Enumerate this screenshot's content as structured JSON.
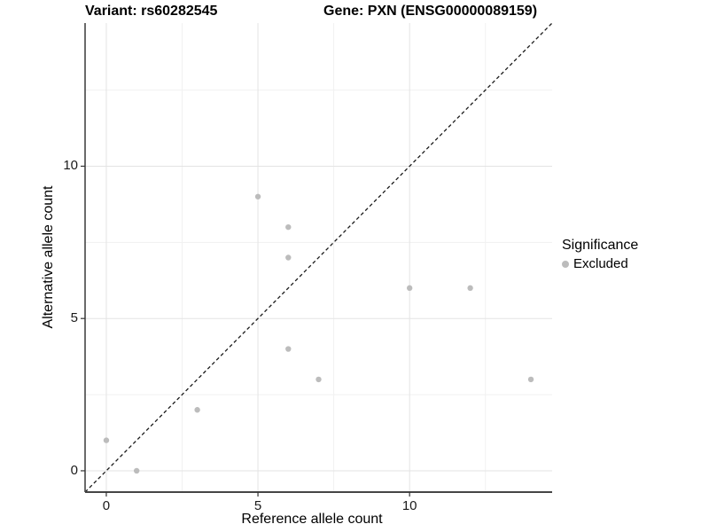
{
  "titles": {
    "variant": "Variant: rs60282545",
    "gene": "Gene: PXN (ENSG00000089159)"
  },
  "axes": {
    "x": {
      "label": "Reference allele count"
    },
    "y": {
      "label": "Alternative allele count"
    }
  },
  "legend": {
    "title": "Significance",
    "items": [
      {
        "label": "Excluded",
        "color": "#bcbcbc"
      }
    ]
  },
  "colors": {
    "grid_major": "#e3e3e3",
    "grid_minor": "#f1f1f1",
    "axis_line": "#454545",
    "tick_mark": "#333333",
    "dashed_line": "#1a1a1a",
    "point": "#bcbcbc",
    "background": "#ffffff"
  },
  "chart_data": {
    "type": "scatter",
    "title": "Variant: rs60282545 | Gene: PXN (ENSG00000089159)",
    "xlabel": "Reference allele count",
    "ylabel": "Alternative allele count",
    "xlim": [
      -0.7,
      14.7
    ],
    "ylim": [
      -0.7,
      14.7
    ],
    "x_major_ticks": [
      0,
      5,
      10
    ],
    "y_major_ticks": [
      0,
      5,
      10
    ],
    "x_minor_ticks": [
      2.5,
      7.5,
      12.5
    ],
    "y_minor_ticks": [
      2.5,
      7.5,
      12.5
    ],
    "grid": true,
    "legend_position": "right",
    "reference_line": {
      "type": "identity",
      "slope": 1,
      "intercept": 0,
      "style": "dashed"
    },
    "series": [
      {
        "name": "Excluded",
        "color": "#bcbcbc",
        "points": [
          [
            0,
            1
          ],
          [
            1,
            0
          ],
          [
            3,
            2
          ],
          [
            5,
            9
          ],
          [
            6,
            8
          ],
          [
            6,
            7
          ],
          [
            6,
            4
          ],
          [
            7,
            3
          ],
          [
            10,
            6
          ],
          [
            12,
            6
          ],
          [
            14,
            3
          ]
        ]
      }
    ]
  }
}
